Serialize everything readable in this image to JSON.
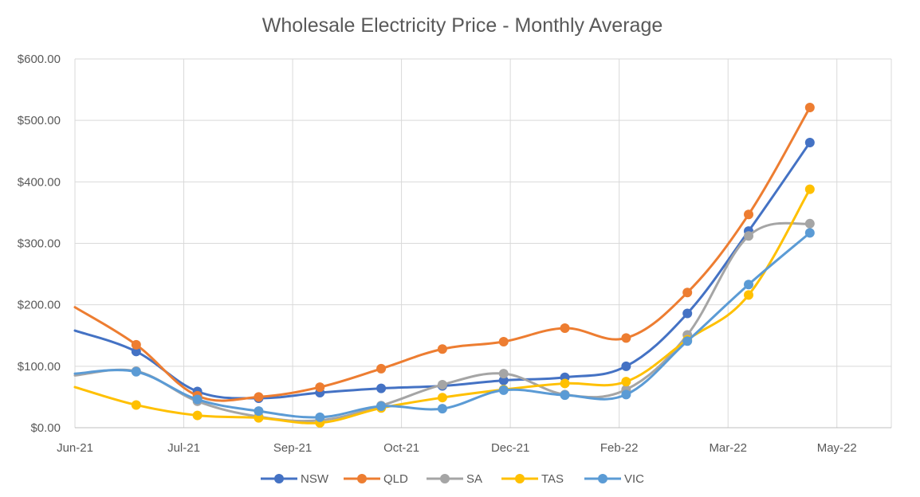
{
  "chart_data": {
    "type": "line",
    "title": "Wholesale Electricity Price - Monthly Average",
    "xlabel": "",
    "ylabel": "",
    "ylim": [
      0,
      600
    ],
    "y_ticks": [
      0,
      100,
      200,
      300,
      400,
      500,
      600
    ],
    "y_tick_labels": [
      "$0.00",
      "$100.00",
      "$200.00",
      "$300.00",
      "$400.00",
      "$500.00",
      "$600.00"
    ],
    "x_tick_labels": [
      "Jun-21",
      "Jul-21",
      "Sep-21",
      "Oct-21",
      "Dec-21",
      "Feb-22",
      "Mar-22",
      "May-22"
    ],
    "grid": true,
    "legend_position": "bottom",
    "points_x": [
      1,
      2,
      3,
      4,
      5,
      6,
      7,
      8,
      9,
      10,
      11,
      12
    ],
    "series": [
      {
        "name": "NSW",
        "color": "#4472C4",
        "start_value": 158,
        "values": [
          124,
          59,
          48,
          57,
          64,
          68,
          77,
          82,
          100,
          186,
          320,
          464
        ]
      },
      {
        "name": "QLD",
        "color": "#ED7D31",
        "start_value": 196,
        "values": [
          135,
          52,
          50,
          66,
          96,
          128,
          140,
          162,
          146,
          220,
          347,
          521
        ]
      },
      {
        "name": "SA",
        "color": "#A5A5A5",
        "start_value": 85,
        "values": [
          92,
          43,
          18,
          12,
          36,
          70,
          88,
          54,
          62,
          151,
          312,
          332
        ]
      },
      {
        "name": "TAS",
        "color": "#FFC000",
        "start_value": 66,
        "values": [
          37,
          20,
          16,
          8,
          32,
          49,
          62,
          72,
          75,
          143,
          216,
          388
        ]
      },
      {
        "name": "VIC",
        "color": "#5B9BD5",
        "start_value": 88,
        "values": [
          91,
          46,
          27,
          17,
          35,
          31,
          61,
          53,
          54,
          141,
          233,
          317
        ]
      }
    ]
  }
}
